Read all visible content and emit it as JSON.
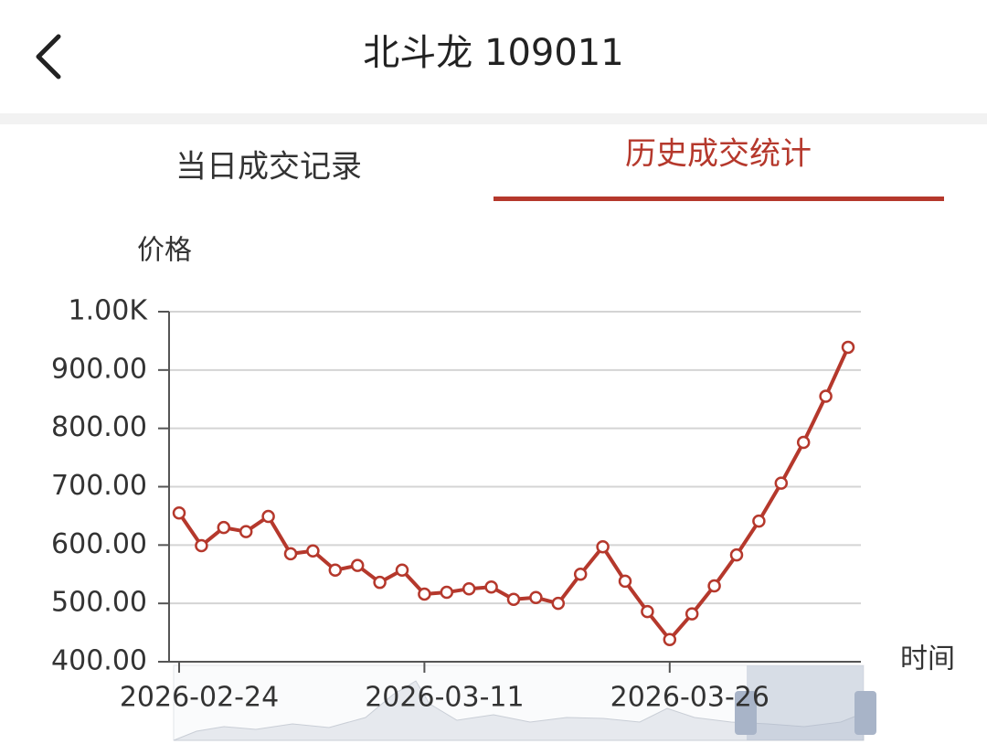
{
  "header": {
    "title": "北斗龙 109011"
  },
  "tabs": [
    "当日成交记录",
    "历史成交统计"
  ],
  "chart_data": {
    "type": "line",
    "y_label": "价格",
    "x_label": "时间",
    "categories": [
      "2026-02-24",
      null,
      null,
      null,
      null,
      null,
      null,
      null,
      null,
      null,
      null,
      "2026-03-11",
      null,
      null,
      null,
      null,
      null,
      null,
      null,
      null,
      null,
      null,
      "2026-03-26",
      null,
      null,
      null,
      null,
      null,
      null,
      null,
      null
    ],
    "values": [
      655,
      599,
      630,
      623,
      649,
      585,
      590,
      557,
      565,
      536,
      557,
      516,
      519,
      525,
      528,
      507,
      510,
      500,
      550,
      597,
      538,
      486,
      438,
      482,
      530,
      583,
      641,
      706,
      776,
      855,
      939
    ],
    "color": "#b5382c",
    "ylim": [
      400,
      1000
    ],
    "yticks": [
      {
        "value": 400,
        "label": "400.00"
      },
      {
        "value": 500,
        "label": "500.00"
      },
      {
        "value": 600,
        "label": "600.00"
      },
      {
        "value": 700,
        "label": "700.00"
      },
      {
        "value": 800,
        "label": "800.00"
      },
      {
        "value": 900,
        "label": "900.00"
      },
      {
        "value": 1000,
        "label": "1.00K"
      }
    ],
    "grid": true
  }
}
